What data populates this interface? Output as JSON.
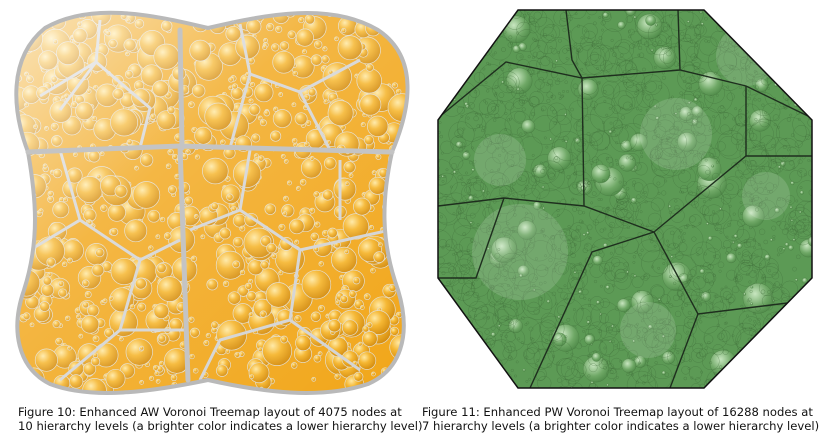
{
  "figures": [
    {
      "caption_line1": "Figure 10: Enhanced AW Voronoi Treemap layout of 4075 nodes at",
      "caption_line2": "10 hierarchy levels (a brighter color indicates a lower hierarchy level)",
      "colors": {
        "base": "#f1a516",
        "light": "#fbe6ad",
        "border": "#c8c8c8",
        "hi": "#ffe8a0"
      }
    },
    {
      "caption_line1": "Figure 11: Enhanced PW Voronoi Treemap layout of 16288 nodes at",
      "caption_line2": "7 hierarchy levels (a brighter color indicates a lower hierarchy level)",
      "colors": {
        "base": "#5c9a55",
        "light": "#a9d0a0",
        "border": "#1e2e1e",
        "hi": "#c8e6c0"
      }
    }
  ]
}
